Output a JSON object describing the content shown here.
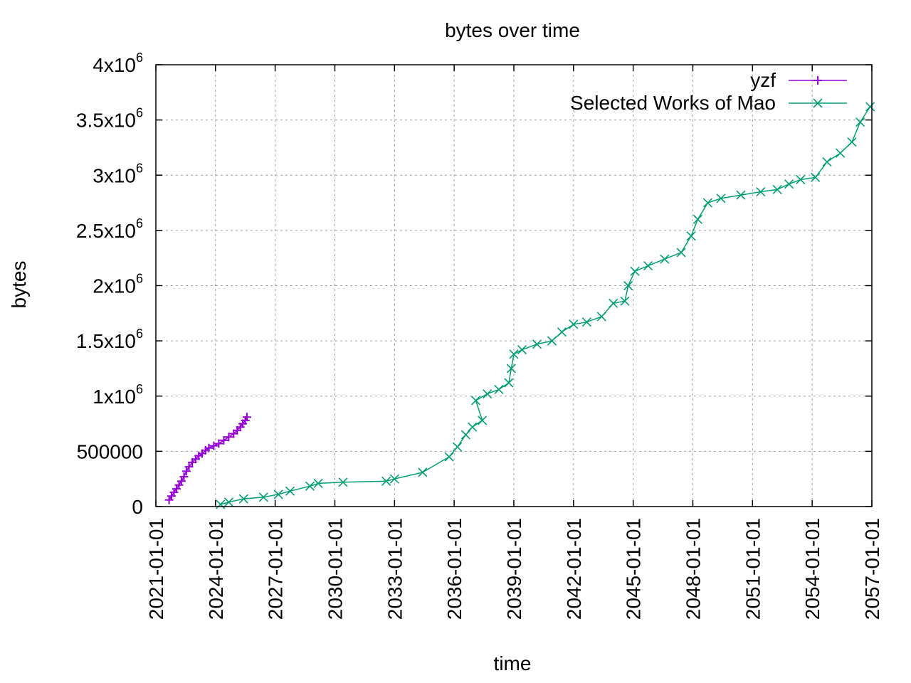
{
  "chart_data": {
    "type": "line",
    "title": "bytes over time",
    "xlabel": "time",
    "ylabel": "bytes",
    "x_axis_type": "date",
    "xlim": [
      "2021-01-01",
      "2057-01-01"
    ],
    "ylim": [
      0,
      4000000
    ],
    "grid": true,
    "legend_position": "top-right",
    "x_ticks": [
      "2021-01-01",
      "2024-01-01",
      "2027-01-01",
      "2030-01-01",
      "2033-01-01",
      "2036-01-01",
      "2039-01-01",
      "2042-01-01",
      "2045-01-01",
      "2048-01-01",
      "2051-01-01",
      "2054-01-01",
      "2057-01-01"
    ],
    "y_ticks": [
      {
        "value": 0,
        "base": "0",
        "exp": ""
      },
      {
        "value": 500000,
        "base": "500000",
        "exp": ""
      },
      {
        "value": 1000000,
        "base": "1x10",
        "exp": "6"
      },
      {
        "value": 1500000,
        "base": "1.5x10",
        "exp": "6"
      },
      {
        "value": 2000000,
        "base": "2x10",
        "exp": "6"
      },
      {
        "value": 2500000,
        "base": "2.5x10",
        "exp": "6"
      },
      {
        "value": 3000000,
        "base": "3x10",
        "exp": "6"
      },
      {
        "value": 3500000,
        "base": "3.5x10",
        "exp": "6"
      },
      {
        "value": 4000000,
        "base": "4x10",
        "exp": "6"
      }
    ],
    "series": [
      {
        "name": "yzf",
        "color": "#9400d3",
        "marker": "plus",
        "points": [
          [
            "2021-09-01",
            60000
          ],
          [
            "2021-10-15",
            95000
          ],
          [
            "2021-12-01",
            130000
          ],
          [
            "2022-01-15",
            160000
          ],
          [
            "2022-03-01",
            195000
          ],
          [
            "2022-04-15",
            230000
          ],
          [
            "2022-06-01",
            270000
          ],
          [
            "2022-07-15",
            320000
          ],
          [
            "2022-09-01",
            360000
          ],
          [
            "2022-11-01",
            400000
          ],
          [
            "2023-01-01",
            430000
          ],
          [
            "2023-03-01",
            460000
          ],
          [
            "2023-05-01",
            480000
          ],
          [
            "2023-07-01",
            510000
          ],
          [
            "2023-09-01",
            530000
          ],
          [
            "2023-12-01",
            550000
          ],
          [
            "2024-03-01",
            570000
          ],
          [
            "2024-06-01",
            600000
          ],
          [
            "2024-09-01",
            630000
          ],
          [
            "2024-12-01",
            660000
          ],
          [
            "2025-02-01",
            690000
          ],
          [
            "2025-04-01",
            720000
          ],
          [
            "2025-05-15",
            750000
          ],
          [
            "2025-07-01",
            780000
          ],
          [
            "2025-08-01",
            810000
          ]
        ]
      },
      {
        "name": "Selected Works of Mao",
        "color": "#009e73",
        "marker": "cross",
        "points": [
          [
            "2024-04-01",
            20000
          ],
          [
            "2024-09-01",
            40000
          ],
          [
            "2025-06-01",
            70000
          ],
          [
            "2026-06-01",
            85000
          ],
          [
            "2027-03-01",
            110000
          ],
          [
            "2027-10-01",
            140000
          ],
          [
            "2028-10-01",
            185000
          ],
          [
            "2029-03-01",
            210000
          ],
          [
            "2030-06-01",
            220000
          ],
          [
            "2032-08-01",
            230000
          ],
          [
            "2033-01-01",
            250000
          ],
          [
            "2034-06-01",
            310000
          ],
          [
            "2035-10-01",
            450000
          ],
          [
            "2036-03-01",
            540000
          ],
          [
            "2036-08-01",
            650000
          ],
          [
            "2036-12-01",
            720000
          ],
          [
            "2037-06-01",
            780000
          ],
          [
            "2037-02-01",
            960000
          ],
          [
            "2037-09-01",
            1020000
          ],
          [
            "2038-04-01",
            1060000
          ],
          [
            "2038-10-01",
            1120000
          ],
          [
            "2038-11-15",
            1250000
          ],
          [
            "2039-01-01",
            1380000
          ],
          [
            "2039-06-01",
            1420000
          ],
          [
            "2040-03-01",
            1470000
          ],
          [
            "2040-12-01",
            1500000
          ],
          [
            "2041-06-01",
            1580000
          ],
          [
            "2042-01-01",
            1650000
          ],
          [
            "2042-09-01",
            1670000
          ],
          [
            "2043-06-01",
            1720000
          ],
          [
            "2044-01-01",
            1840000
          ],
          [
            "2044-08-01",
            1860000
          ],
          [
            "2044-10-01",
            2000000
          ],
          [
            "2045-02-01",
            2130000
          ],
          [
            "2045-10-01",
            2180000
          ],
          [
            "2046-08-01",
            2240000
          ],
          [
            "2047-06-01",
            2300000
          ],
          [
            "2047-12-01",
            2450000
          ],
          [
            "2048-04-01",
            2600000
          ],
          [
            "2048-10-01",
            2750000
          ],
          [
            "2049-06-01",
            2790000
          ],
          [
            "2050-06-01",
            2820000
          ],
          [
            "2051-06-01",
            2850000
          ],
          [
            "2052-04-01",
            2870000
          ],
          [
            "2052-11-01",
            2920000
          ],
          [
            "2053-06-01",
            2960000
          ],
          [
            "2054-03-01",
            2980000
          ],
          [
            "2054-10-01",
            3120000
          ],
          [
            "2055-06-01",
            3200000
          ],
          [
            "2056-01-01",
            3300000
          ],
          [
            "2056-06-01",
            3480000
          ],
          [
            "2056-12-01",
            3620000
          ]
        ]
      }
    ]
  }
}
